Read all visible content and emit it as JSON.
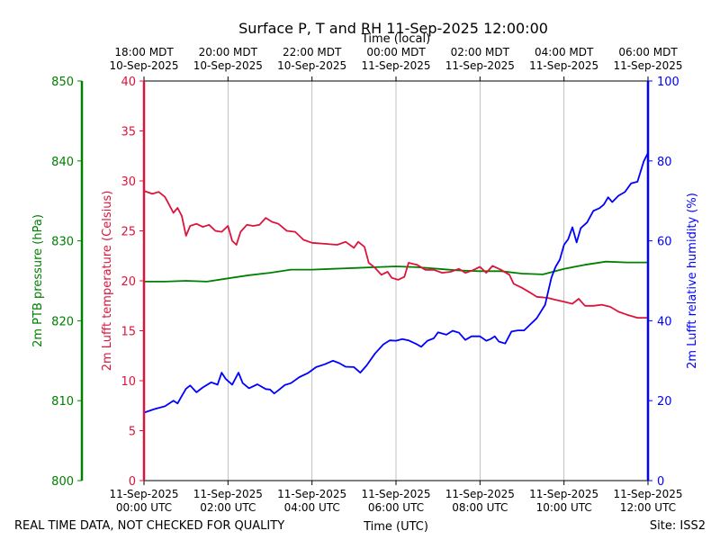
{
  "chart_data": {
    "type": "line",
    "title": "Surface P, T and RH 11-Sep-2025 12:00:00",
    "top_axis_label": "Time (local)",
    "bottom_axis_label": "Time (UTC)",
    "x_range_hours_utc": [
      0,
      12
    ],
    "x_gridlines": true,
    "top_ticks": [
      {
        "hour": 0,
        "label1": "18:00 MDT",
        "label2": "10-Sep-2025"
      },
      {
        "hour": 2,
        "label1": "20:00 MDT",
        "label2": "10-Sep-2025"
      },
      {
        "hour": 4,
        "label1": "22:00 MDT",
        "label2": "10-Sep-2025"
      },
      {
        "hour": 6,
        "label1": "00:00 MDT",
        "label2": "11-Sep-2025"
      },
      {
        "hour": 8,
        "label1": "02:00 MDT",
        "label2": "11-Sep-2025"
      },
      {
        "hour": 10,
        "label1": "04:00 MDT",
        "label2": "11-Sep-2025"
      },
      {
        "hour": 12,
        "label1": "06:00 MDT",
        "label2": "11-Sep-2025"
      }
    ],
    "bottom_ticks": [
      {
        "hour": 0,
        "label1": "11-Sep-2025",
        "label2": "00:00 UTC"
      },
      {
        "hour": 2,
        "label1": "11-Sep-2025",
        "label2": "02:00 UTC"
      },
      {
        "hour": 4,
        "label1": "11-Sep-2025",
        "label2": "04:00 UTC"
      },
      {
        "hour": 6,
        "label1": "11-Sep-2025",
        "label2": "06:00 UTC"
      },
      {
        "hour": 8,
        "label1": "11-Sep-2025",
        "label2": "08:00 UTC"
      },
      {
        "hour": 10,
        "label1": "11-Sep-2025",
        "label2": "10:00 UTC"
      },
      {
        "hour": 12,
        "label1": "11-Sep-2025",
        "label2": "12:00 UTC"
      }
    ],
    "axes": {
      "pressure": {
        "label": "2m PTB pressure (hPa)",
        "range": [
          800,
          850
        ],
        "ticks": [
          800,
          810,
          820,
          830,
          840,
          850
        ],
        "color": "#008000"
      },
      "temperature": {
        "label": "2m Lufft temperature (Celsius)",
        "range": [
          0,
          40
        ],
        "ticks": [
          0,
          5,
          10,
          15,
          20,
          25,
          30,
          35,
          40
        ],
        "color": "#dc143c"
      },
      "humidity": {
        "label": "2m Lufft relative humidity (%)",
        "range": [
          0,
          100
        ],
        "ticks": [
          0,
          20,
          40,
          60,
          80,
          100
        ],
        "color": "#0000ff"
      }
    },
    "series": [
      {
        "name": "2m PTB pressure",
        "axis": "pressure",
        "color": "#008000",
        "points": [
          [
            0,
            824.9
          ],
          [
            0.5,
            824.9
          ],
          [
            1,
            825.0
          ],
          [
            1.5,
            824.9
          ],
          [
            2,
            825.3
          ],
          [
            2.5,
            825.7
          ],
          [
            3,
            826.0
          ],
          [
            3.5,
            826.4
          ],
          [
            4,
            826.4
          ],
          [
            4.5,
            826.5
          ],
          [
            5,
            826.6
          ],
          [
            5.5,
            826.7
          ],
          [
            6,
            826.8
          ],
          [
            6.5,
            826.7
          ],
          [
            7,
            826.5
          ],
          [
            7.5,
            826.3
          ],
          [
            8,
            826.2
          ],
          [
            8.5,
            826.2
          ],
          [
            9,
            825.9
          ],
          [
            9.5,
            825.8
          ],
          [
            10,
            826.5
          ],
          [
            10.5,
            827.0
          ],
          [
            11,
            827.4
          ],
          [
            11.5,
            827.3
          ],
          [
            12,
            827.3
          ]
        ]
      },
      {
        "name": "2m Lufft temperature",
        "axis": "temperature",
        "color": "#dc143c",
        "points": [
          [
            0,
            29.0
          ],
          [
            0.2,
            28.7
          ],
          [
            0.35,
            28.9
          ],
          [
            0.5,
            28.4
          ],
          [
            0.6,
            27.6
          ],
          [
            0.7,
            26.8
          ],
          [
            0.8,
            27.3
          ],
          [
            0.9,
            26.5
          ],
          [
            1.0,
            24.5
          ],
          [
            1.1,
            25.5
          ],
          [
            1.25,
            25.7
          ],
          [
            1.4,
            25.4
          ],
          [
            1.55,
            25.6
          ],
          [
            1.7,
            25.0
          ],
          [
            1.85,
            24.9
          ],
          [
            2.0,
            25.5
          ],
          [
            2.1,
            24.0
          ],
          [
            2.2,
            23.6
          ],
          [
            2.3,
            24.9
          ],
          [
            2.45,
            25.6
          ],
          [
            2.6,
            25.5
          ],
          [
            2.75,
            25.6
          ],
          [
            2.9,
            26.3
          ],
          [
            3.05,
            25.9
          ],
          [
            3.2,
            25.7
          ],
          [
            3.4,
            25.0
          ],
          [
            3.6,
            24.9
          ],
          [
            3.8,
            24.1
          ],
          [
            4.0,
            23.8
          ],
          [
            4.3,
            23.7
          ],
          [
            4.6,
            23.6
          ],
          [
            4.8,
            23.9
          ],
          [
            5.0,
            23.3
          ],
          [
            5.1,
            23.9
          ],
          [
            5.25,
            23.4
          ],
          [
            5.35,
            21.8
          ],
          [
            5.5,
            21.3
          ],
          [
            5.65,
            20.6
          ],
          [
            5.8,
            20.9
          ],
          [
            5.9,
            20.3
          ],
          [
            6.05,
            20.1
          ],
          [
            6.2,
            20.4
          ],
          [
            6.3,
            21.8
          ],
          [
            6.5,
            21.6
          ],
          [
            6.7,
            21.1
          ],
          [
            6.9,
            21.1
          ],
          [
            7.1,
            20.8
          ],
          [
            7.3,
            20.9
          ],
          [
            7.5,
            21.2
          ],
          [
            7.65,
            20.8
          ],
          [
            7.8,
            21.0
          ],
          [
            8.0,
            21.4
          ],
          [
            8.15,
            20.8
          ],
          [
            8.3,
            21.5
          ],
          [
            8.5,
            21.1
          ],
          [
            8.7,
            20.6
          ],
          [
            8.8,
            19.7
          ],
          [
            9.0,
            19.3
          ],
          [
            9.2,
            18.8
          ],
          [
            9.35,
            18.4
          ],
          [
            9.6,
            18.3
          ],
          [
            9.8,
            18.1
          ],
          [
            10.0,
            17.9
          ],
          [
            10.2,
            17.7
          ],
          [
            10.35,
            18.2
          ],
          [
            10.5,
            17.5
          ],
          [
            10.7,
            17.5
          ],
          [
            10.9,
            17.6
          ],
          [
            11.1,
            17.4
          ],
          [
            11.3,
            16.9
          ],
          [
            11.5,
            16.6
          ],
          [
            11.75,
            16.3
          ],
          [
            12.0,
            16.3
          ]
        ]
      },
      {
        "name": "2m Lufft relative humidity",
        "axis": "humidity",
        "color": "#0000ff",
        "points": [
          [
            0,
            17.0
          ],
          [
            0.25,
            17.9
          ],
          [
            0.5,
            18.6
          ],
          [
            0.7,
            20.0
          ],
          [
            0.8,
            19.3
          ],
          [
            0.9,
            21.2
          ],
          [
            1.0,
            23.0
          ],
          [
            1.1,
            23.8
          ],
          [
            1.25,
            22.1
          ],
          [
            1.4,
            23.3
          ],
          [
            1.6,
            24.6
          ],
          [
            1.75,
            24.0
          ],
          [
            1.85,
            27.0
          ],
          [
            1.95,
            25.4
          ],
          [
            2.1,
            24.0
          ],
          [
            2.25,
            27.0
          ],
          [
            2.35,
            24.4
          ],
          [
            2.5,
            23.1
          ],
          [
            2.7,
            24.1
          ],
          [
            2.9,
            22.9
          ],
          [
            3.0,
            22.8
          ],
          [
            3.1,
            21.8
          ],
          [
            3.2,
            22.6
          ],
          [
            3.35,
            23.9
          ],
          [
            3.5,
            24.4
          ],
          [
            3.7,
            25.9
          ],
          [
            3.9,
            26.9
          ],
          [
            4.1,
            28.4
          ],
          [
            4.3,
            29.1
          ],
          [
            4.5,
            30.0
          ],
          [
            4.65,
            29.4
          ],
          [
            4.8,
            28.5
          ],
          [
            5.0,
            28.4
          ],
          [
            5.15,
            27.0
          ],
          [
            5.3,
            28.8
          ],
          [
            5.5,
            31.8
          ],
          [
            5.7,
            34.1
          ],
          [
            5.85,
            35.1
          ],
          [
            6.0,
            35.0
          ],
          [
            6.15,
            35.4
          ],
          [
            6.3,
            35.1
          ],
          [
            6.5,
            34.1
          ],
          [
            6.6,
            33.5
          ],
          [
            6.75,
            35.0
          ],
          [
            6.9,
            35.6
          ],
          [
            7.0,
            37.1
          ],
          [
            7.2,
            36.5
          ],
          [
            7.35,
            37.5
          ],
          [
            7.5,
            37.0
          ],
          [
            7.65,
            35.2
          ],
          [
            7.8,
            36.1
          ],
          [
            8.0,
            36.1
          ],
          [
            8.15,
            35.0
          ],
          [
            8.25,
            35.4
          ],
          [
            8.35,
            36.1
          ],
          [
            8.45,
            34.8
          ],
          [
            8.6,
            34.3
          ],
          [
            8.75,
            37.3
          ],
          [
            8.9,
            37.6
          ],
          [
            9.05,
            37.6
          ],
          [
            9.2,
            39.1
          ],
          [
            9.35,
            40.6
          ],
          [
            9.55,
            44.0
          ],
          [
            9.7,
            50.8
          ],
          [
            9.8,
            53.5
          ],
          [
            9.9,
            55.3
          ],
          [
            10.0,
            59.0
          ],
          [
            10.1,
            60.4
          ],
          [
            10.2,
            63.4
          ],
          [
            10.3,
            59.6
          ],
          [
            10.4,
            63.2
          ],
          [
            10.55,
            64.6
          ],
          [
            10.7,
            67.5
          ],
          [
            10.85,
            68.2
          ],
          [
            10.95,
            69.1
          ],
          [
            11.05,
            70.9
          ],
          [
            11.15,
            69.7
          ],
          [
            11.3,
            71.3
          ],
          [
            11.45,
            72.2
          ],
          [
            11.6,
            74.4
          ],
          [
            11.75,
            74.8
          ],
          [
            11.9,
            79.9
          ],
          [
            12.0,
            82.0
          ]
        ]
      }
    ]
  },
  "footer": {
    "left": "REAL TIME DATA, NOT CHECKED FOR QUALITY",
    "right": "Site: ISS2"
  }
}
